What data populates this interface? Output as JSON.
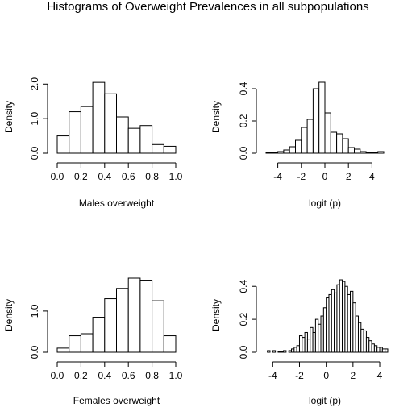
{
  "title": "Histograms of Overweight Prevalences in all subpopulations",
  "chart_data": [
    {
      "type": "bar",
      "panel": "top-left",
      "xlabel": "Males overweight",
      "ylabel": "Density",
      "xlim": [
        0,
        1
      ],
      "ylim": [
        0,
        2.1
      ],
      "xticks": [
        "0.0",
        "0.2",
        "0.4",
        "0.6",
        "0.8",
        "1.0"
      ],
      "yticks": [
        "0.0",
        "1.0",
        "2.0"
      ],
      "bins": [
        [
          0.0,
          0.1
        ],
        [
          0.1,
          0.2
        ],
        [
          0.2,
          0.3
        ],
        [
          0.3,
          0.4
        ],
        [
          0.4,
          0.5
        ],
        [
          0.5,
          0.6
        ],
        [
          0.6,
          0.7
        ],
        [
          0.7,
          0.8
        ],
        [
          0.8,
          0.9
        ],
        [
          0.9,
          1.0
        ]
      ],
      "values": [
        0.5,
        1.2,
        1.35,
        2.05,
        1.72,
        1.05,
        0.72,
        0.8,
        0.25,
        0.2
      ]
    },
    {
      "type": "bar",
      "panel": "top-right",
      "xlabel": "logit (p)",
      "ylabel": "Density",
      "xlim": [
        -5,
        5
      ],
      "ylim": [
        0,
        0.45
      ],
      "xticks": [
        "-4",
        "-2",
        "0",
        "2",
        "4"
      ],
      "yticks": [
        "0.0",
        "0.2",
        "0.4"
      ],
      "bins": [
        [
          -5,
          -4.5
        ],
        [
          -4.5,
          -4
        ],
        [
          -4,
          -3.5
        ],
        [
          -3.5,
          -3
        ],
        [
          -3,
          -2.5
        ],
        [
          -2.5,
          -2
        ],
        [
          -2,
          -1.5
        ],
        [
          -1.5,
          -1
        ],
        [
          -1,
          -0.5
        ],
        [
          -0.5,
          0
        ],
        [
          0,
          0.5
        ],
        [
          0.5,
          1
        ],
        [
          1,
          1.5
        ],
        [
          1.5,
          2
        ],
        [
          2,
          2.5
        ],
        [
          2.5,
          3
        ],
        [
          3,
          3.5
        ],
        [
          3.5,
          4
        ],
        [
          4,
          4.5
        ],
        [
          4.5,
          5
        ]
      ],
      "values": [
        0.005,
        0.005,
        0.01,
        0.02,
        0.04,
        0.08,
        0.16,
        0.21,
        0.4,
        0.44,
        0.25,
        0.13,
        0.12,
        0.09,
        0.035,
        0.025,
        0.01,
        0.005,
        0.005,
        0.01
      ]
    },
    {
      "type": "bar",
      "panel": "bottom-left",
      "xlabel": "Females overweight",
      "ylabel": "Density",
      "xlim": [
        0,
        1
      ],
      "ylim": [
        0,
        1.8
      ],
      "xticks": [
        "0.0",
        "0.2",
        "0.4",
        "0.6",
        "0.8",
        "1.0"
      ],
      "yticks": [
        "0.0",
        "1.0"
      ],
      "bins": [
        [
          0.0,
          0.1
        ],
        [
          0.1,
          0.2
        ],
        [
          0.2,
          0.3
        ],
        [
          0.3,
          0.4
        ],
        [
          0.4,
          0.5
        ],
        [
          0.5,
          0.6
        ],
        [
          0.6,
          0.7
        ],
        [
          0.7,
          0.8
        ],
        [
          0.8,
          0.9
        ],
        [
          0.9,
          1.0
        ]
      ],
      "values": [
        0.1,
        0.4,
        0.45,
        0.85,
        1.3,
        1.55,
        1.8,
        1.75,
        1.25,
        0.4
      ]
    },
    {
      "type": "bar",
      "panel": "bottom-right",
      "xlabel": "logit (p)",
      "ylabel": "Density",
      "xlim": [
        -4.5,
        4.3
      ],
      "ylim": [
        0,
        0.45
      ],
      "xticks": [
        "-4",
        "-2",
        "0",
        "2",
        "4"
      ],
      "yticks": [
        "0.0",
        "0.2",
        "0.4"
      ],
      "bin_start": -4.4,
      "bin_width": 0.2,
      "values": [
        0.01,
        0.0,
        0.01,
        0.0,
        0.005,
        0.005,
        0.01,
        0.0,
        0.01,
        0.02,
        0.03,
        0.04,
        0.1,
        0.09,
        0.12,
        0.08,
        0.15,
        0.12,
        0.2,
        0.17,
        0.22,
        0.27,
        0.33,
        0.35,
        0.38,
        0.36,
        0.41,
        0.44,
        0.43,
        0.4,
        0.35,
        0.37,
        0.3,
        0.22,
        0.18,
        0.14,
        0.13,
        0.09,
        0.07,
        0.05,
        0.04,
        0.03,
        0.03,
        0.02,
        0.02
      ]
    }
  ]
}
